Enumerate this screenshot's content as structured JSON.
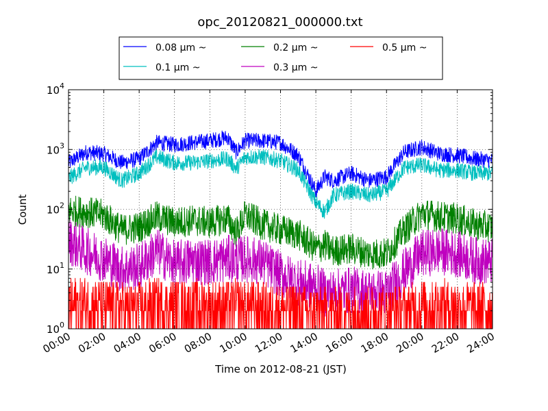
{
  "chart_data": {
    "type": "line",
    "title": "opc_20120821_000000.txt",
    "xlabel": "Time on 2012-08-21 (JST)",
    "ylabel": "Count",
    "y_scale": "log",
    "ylim": [
      1,
      10000
    ],
    "xlim": [
      "00:00",
      "24:00"
    ],
    "grid": true,
    "legend_position": "top-center, above plot",
    "x_ticks": [
      "00:00",
      "02:00",
      "04:00",
      "06:00",
      "08:00",
      "10:00",
      "12:00",
      "14:00",
      "16:00",
      "18:00",
      "20:00",
      "22:00",
      "24:00"
    ],
    "y_ticks": [
      {
        "base": "10",
        "exp": "0"
      },
      {
        "base": "10",
        "exp": "1"
      },
      {
        "base": "10",
        "exp": "2"
      },
      {
        "base": "10",
        "exp": "3"
      },
      {
        "base": "10",
        "exp": "4"
      }
    ],
    "x": [
      0,
      1,
      2,
      3,
      4,
      5,
      6,
      7,
      8,
      9,
      9.5,
      10,
      11,
      12,
      13,
      14,
      14.5,
      15,
      16,
      17,
      18,
      19,
      20,
      21,
      22,
      23,
      24
    ],
    "series": [
      {
        "name": "0.08 μm ~",
        "color": "#0000ff",
        "noise": 0.06,
        "values": [
          600,
          900,
          850,
          600,
          700,
          1300,
          1200,
          1300,
          1400,
          1600,
          900,
          1400,
          1400,
          1300,
          800,
          200,
          350,
          300,
          400,
          300,
          350,
          900,
          1100,
          850,
          800,
          700,
          650
        ]
      },
      {
        "name": "0.1 μm ~",
        "color": "#00bfbf",
        "noise": 0.06,
        "values": [
          330,
          500,
          500,
          300,
          400,
          750,
          600,
          600,
          650,
          700,
          480,
          750,
          750,
          650,
          450,
          130,
          90,
          170,
          200,
          170,
          200,
          500,
          550,
          450,
          450,
          400,
          400
        ]
      },
      {
        "name": "0.2 μm ~",
        "color": "#008000",
        "noise": 0.12,
        "values": [
          95,
          90,
          80,
          45,
          50,
          75,
          60,
          65,
          60,
          70,
          40,
          80,
          55,
          45,
          38,
          22,
          25,
          20,
          22,
          18,
          18,
          45,
          85,
          75,
          70,
          55,
          50
        ]
      },
      {
        "name": "0.3 μm ~",
        "color": "#bf00bf",
        "noise": 0.18,
        "values": [
          30,
          20,
          15,
          10,
          11,
          20,
          12,
          14,
          13,
          15,
          14,
          15,
          13,
          8,
          6,
          5,
          4,
          4,
          4.5,
          4,
          4,
          9,
          18,
          20,
          18,
          14,
          13
        ]
      },
      {
        "name": "0.5 μm ~",
        "color": "#ff0000",
        "noise": 0,
        "values": [
          2,
          2,
          1.8,
          1.6,
          1.6,
          2,
          1.8,
          1.8,
          1.8,
          1.8,
          1.8,
          1.8,
          1.6,
          1.5,
          1.4,
          1.3,
          1.3,
          1.3,
          1.3,
          1.3,
          1.3,
          1.5,
          1.8,
          1.8,
          1.8,
          1.6,
          1.6
        ]
      }
    ]
  }
}
